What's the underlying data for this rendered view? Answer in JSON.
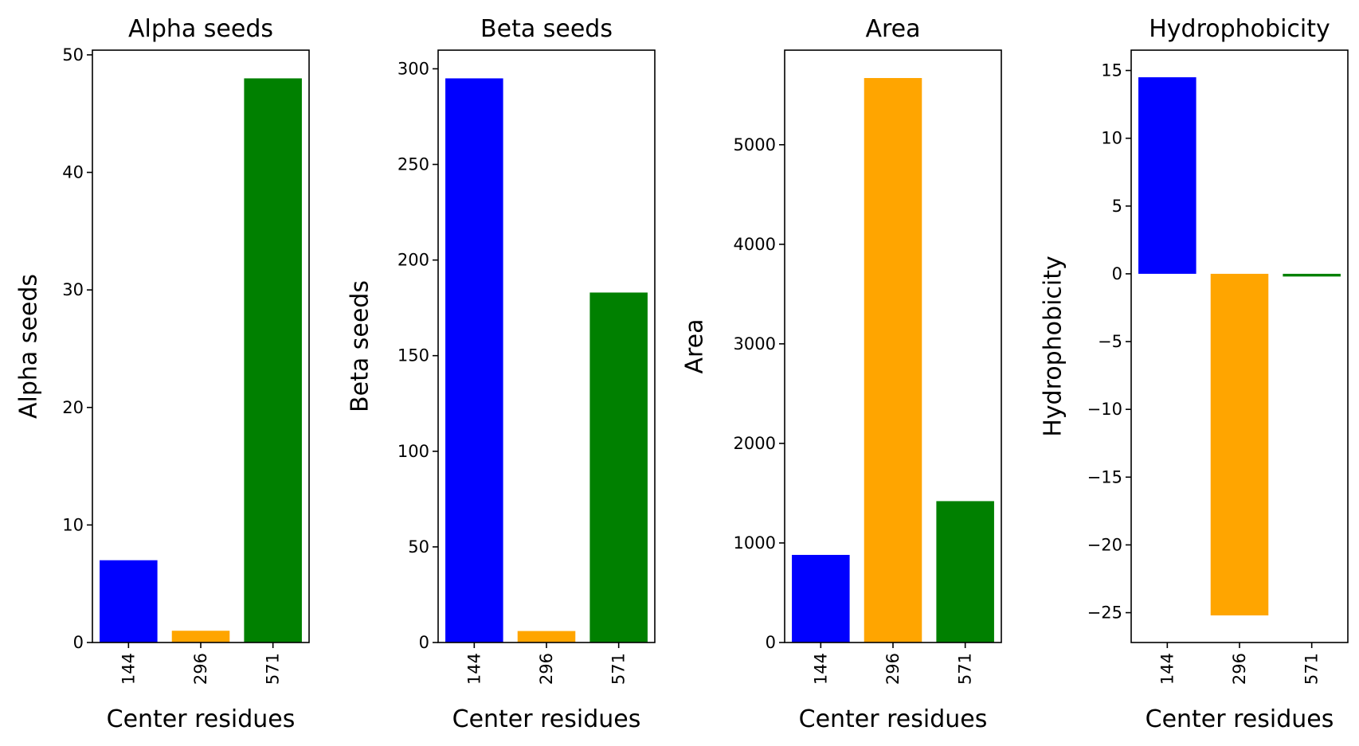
{
  "chart_data": [
    {
      "type": "bar",
      "title": "Alpha seeds",
      "xlabel": "Center residues",
      "ylabel": "Alpha seeds",
      "categories": [
        "144",
        "296",
        "571"
      ],
      "values": [
        7,
        1,
        48
      ],
      "colors": [
        "#0000ff",
        "#ffa500",
        "#008000"
      ],
      "ylim": [
        0,
        50.4
      ],
      "yticks": [
        0,
        10,
        20,
        30,
        40,
        50
      ],
      "ytick_labels": [
        "0",
        "10",
        "20",
        "30",
        "40",
        "50"
      ],
      "grid": false
    },
    {
      "type": "bar",
      "title": "Beta seeds",
      "xlabel": "Center residues",
      "ylabel": "Beta seeds",
      "categories": [
        "144",
        "296",
        "571"
      ],
      "values": [
        295,
        6,
        183
      ],
      "colors": [
        "#0000ff",
        "#ffa500",
        "#008000"
      ],
      "ylim": [
        0,
        309.75
      ],
      "yticks": [
        0,
        50,
        100,
        150,
        200,
        250,
        300
      ],
      "ytick_labels": [
        "0",
        "50",
        "100",
        "150",
        "200",
        "250",
        "300"
      ],
      "grid": false
    },
    {
      "type": "bar",
      "title": "Area",
      "xlabel": "Center residues",
      "ylabel": "Area",
      "categories": [
        "144",
        "296",
        "571"
      ],
      "values": [
        880,
        5670,
        1420
      ],
      "colors": [
        "#0000ff",
        "#ffa500",
        "#008000"
      ],
      "ylim": [
        0,
        5950
      ],
      "yticks": [
        0,
        1000,
        2000,
        3000,
        4000,
        5000
      ],
      "ytick_labels": [
        "0",
        "1000",
        "2000",
        "3000",
        "4000",
        "5000"
      ],
      "grid": false
    },
    {
      "type": "bar",
      "title": "Hydrophobicity",
      "xlabel": "Center residues",
      "ylabel": "Hydrophobicity",
      "categories": [
        "144",
        "296",
        "571"
      ],
      "values": [
        14.5,
        -25.2,
        -0.2
      ],
      "colors": [
        "#0000ff",
        "#ffa500",
        "#008000"
      ],
      "ylim": [
        -27.2,
        16.5
      ],
      "yticks": [
        -25,
        -20,
        -15,
        -10,
        -5,
        0,
        5,
        10,
        15
      ],
      "ytick_labels": [
        "−25",
        "−20",
        "−15",
        "−10",
        "−5",
        "0",
        "5",
        "10",
        "15"
      ],
      "grid": false
    }
  ]
}
